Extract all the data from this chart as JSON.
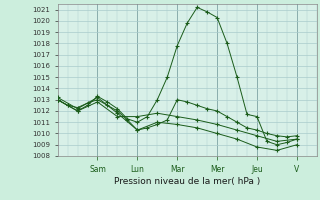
{
  "xlabel": "Pression niveau de la mer( hPa )",
  "background_color": "#cceedd",
  "plot_bg_color": "#d8f0e8",
  "grid_color": "#aacccc",
  "line_color": "#1a5c1a",
  "ylim": [
    1008,
    1021.5
  ],
  "ytick_min": 1008,
  "ytick_max": 1021,
  "day_labels": [
    "Sam",
    "Lun",
    "Mar",
    "Mer",
    "Jeu",
    "V"
  ],
  "day_positions": [
    2.0,
    4.0,
    6.0,
    8.0,
    10.0,
    12.0
  ],
  "xlim": [
    0,
    13
  ],
  "num_x_points": 13,
  "series": [
    {
      "x": [
        0.0,
        0.5,
        1.0,
        1.5,
        2.0,
        2.5,
        3.0,
        3.5,
        4.0,
        4.5,
        5.0,
        5.5,
        6.0,
        6.5,
        7.0,
        7.5,
        8.0,
        8.5,
        9.0,
        9.5,
        10.0,
        10.5,
        11.0,
        11.5,
        12.0
      ],
      "y": [
        1013.0,
        1012.5,
        1012.0,
        1012.5,
        1013.3,
        1012.8,
        1012.2,
        1011.3,
        1011.0,
        1011.5,
        1013.0,
        1015.0,
        1017.8,
        1019.8,
        1021.2,
        1020.8,
        1020.3,
        1018.0,
        1015.0,
        1011.7,
        1011.5,
        1009.3,
        1009.0,
        1009.2,
        1009.5
      ]
    },
    {
      "x": [
        0.0,
        0.5,
        1.0,
        1.5,
        2.0,
        2.5,
        3.0,
        3.5,
        4.0,
        4.5,
        5.0,
        5.5,
        6.0,
        6.5,
        7.0,
        7.5,
        8.0,
        8.5,
        9.0,
        9.5,
        10.0,
        10.5,
        11.0,
        11.5,
        12.0
      ],
      "y": [
        1013.0,
        1012.5,
        1012.3,
        1012.7,
        1013.0,
        1012.5,
        1012.0,
        1011.2,
        1010.3,
        1010.5,
        1010.8,
        1011.2,
        1013.0,
        1012.8,
        1012.5,
        1012.2,
        1012.0,
        1011.5,
        1011.0,
        1010.5,
        1010.3,
        1010.0,
        1009.8,
        1009.7,
        1009.8
      ]
    },
    {
      "x": [
        0.0,
        1.0,
        2.0,
        3.0,
        4.0,
        5.0,
        6.0,
        7.0,
        8.0,
        9.0,
        10.0,
        11.0,
        12.0
      ],
      "y": [
        1013.0,
        1012.0,
        1012.8,
        1011.5,
        1011.5,
        1011.8,
        1011.5,
        1011.2,
        1010.8,
        1010.3,
        1009.8,
        1009.3,
        1009.5
      ]
    },
    {
      "x": [
        0.0,
        1.0,
        2.0,
        3.0,
        4.0,
        5.0,
        6.0,
        7.0,
        8.0,
        9.0,
        10.0,
        11.0,
        12.0
      ],
      "y": [
        1013.2,
        1012.2,
        1013.2,
        1011.8,
        1010.3,
        1011.0,
        1010.8,
        1010.5,
        1010.0,
        1009.5,
        1008.8,
        1008.5,
        1009.0
      ]
    }
  ]
}
